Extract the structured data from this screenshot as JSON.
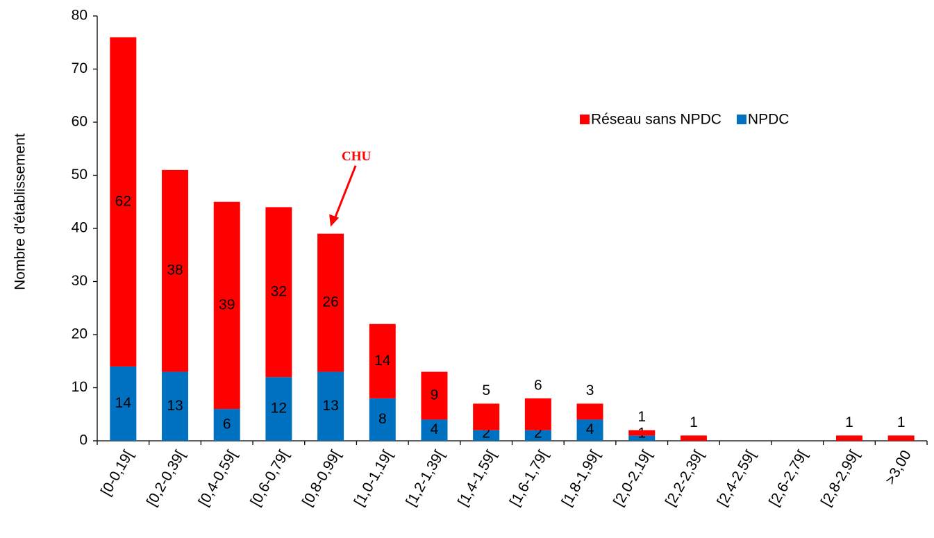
{
  "chart_data": {
    "type": "stacked_bar",
    "ylabel": "Nombre d'établissement",
    "categories": [
      "[0-0,19[",
      "[0,2-0,39[",
      "[0,4-0,59[",
      "[0,6-0,79[",
      "[0,8-0,99[",
      "[1,0-1,19[",
      "[1,2-1,39[",
      "[1,4-1,59[",
      "[1,6-1,79[",
      "[1,8-1,99[",
      "[2,0-2,19[",
      "[2,2-2,39[",
      "[2,4-2,59[",
      "[2,6-2,79[",
      "[2,8-2,99[",
      ">3,00"
    ],
    "series": [
      {
        "name": "NPDC",
        "color": "#0070c0",
        "values": [
          14,
          13,
          6,
          12,
          13,
          8,
          4,
          2,
          2,
          4,
          1,
          0,
          0,
          0,
          0,
          0
        ]
      },
      {
        "name": "Réseau sans NPDC",
        "color": "#ff0000",
        "values": [
          62,
          38,
          39,
          32,
          26,
          14,
          9,
          5,
          6,
          3,
          1,
          1,
          0,
          0,
          1,
          1
        ]
      }
    ],
    "ylim": [
      0,
      80
    ],
    "yticks": [
      0,
      10,
      20,
      30,
      40,
      50,
      60,
      70,
      80
    ],
    "grid": false,
    "legend": "upper right",
    "annotation": {
      "text": "CHU",
      "category": 4
    }
  }
}
